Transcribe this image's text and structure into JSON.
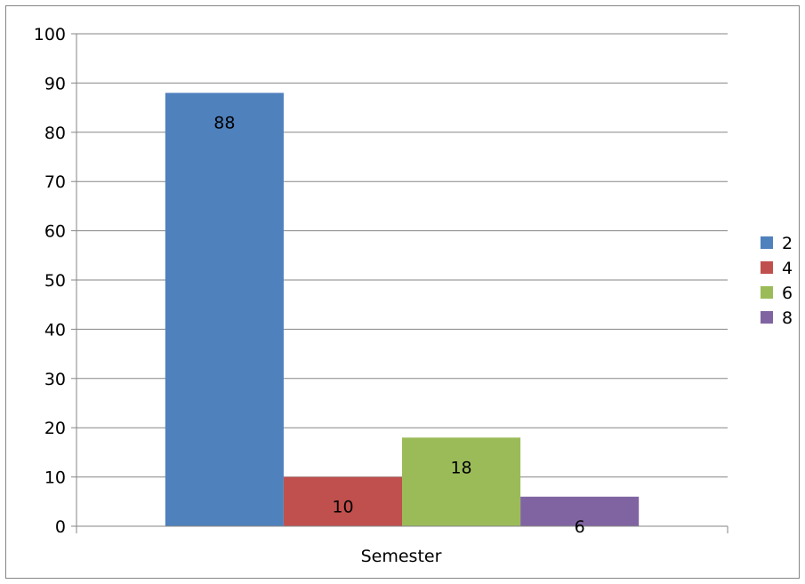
{
  "chart_data": {
    "type": "bar",
    "title": "",
    "xlabel": "Semester",
    "ylabel": "",
    "ylim": [
      0,
      100
    ],
    "yticks": [
      0,
      10,
      20,
      30,
      40,
      50,
      60,
      70,
      80,
      90,
      100
    ],
    "grid": true,
    "legend_position": "right",
    "categories": [
      "Semester"
    ],
    "series": [
      {
        "name": "2",
        "values": [
          88
        ],
        "color": "#4F81BD"
      },
      {
        "name": "4",
        "values": [
          10
        ],
        "color": "#C0504D"
      },
      {
        "name": "6",
        "values": [
          18
        ],
        "color": "#9BBB59"
      },
      {
        "name": "8",
        "values": [
          6
        ],
        "color": "#8064A2"
      }
    ]
  }
}
